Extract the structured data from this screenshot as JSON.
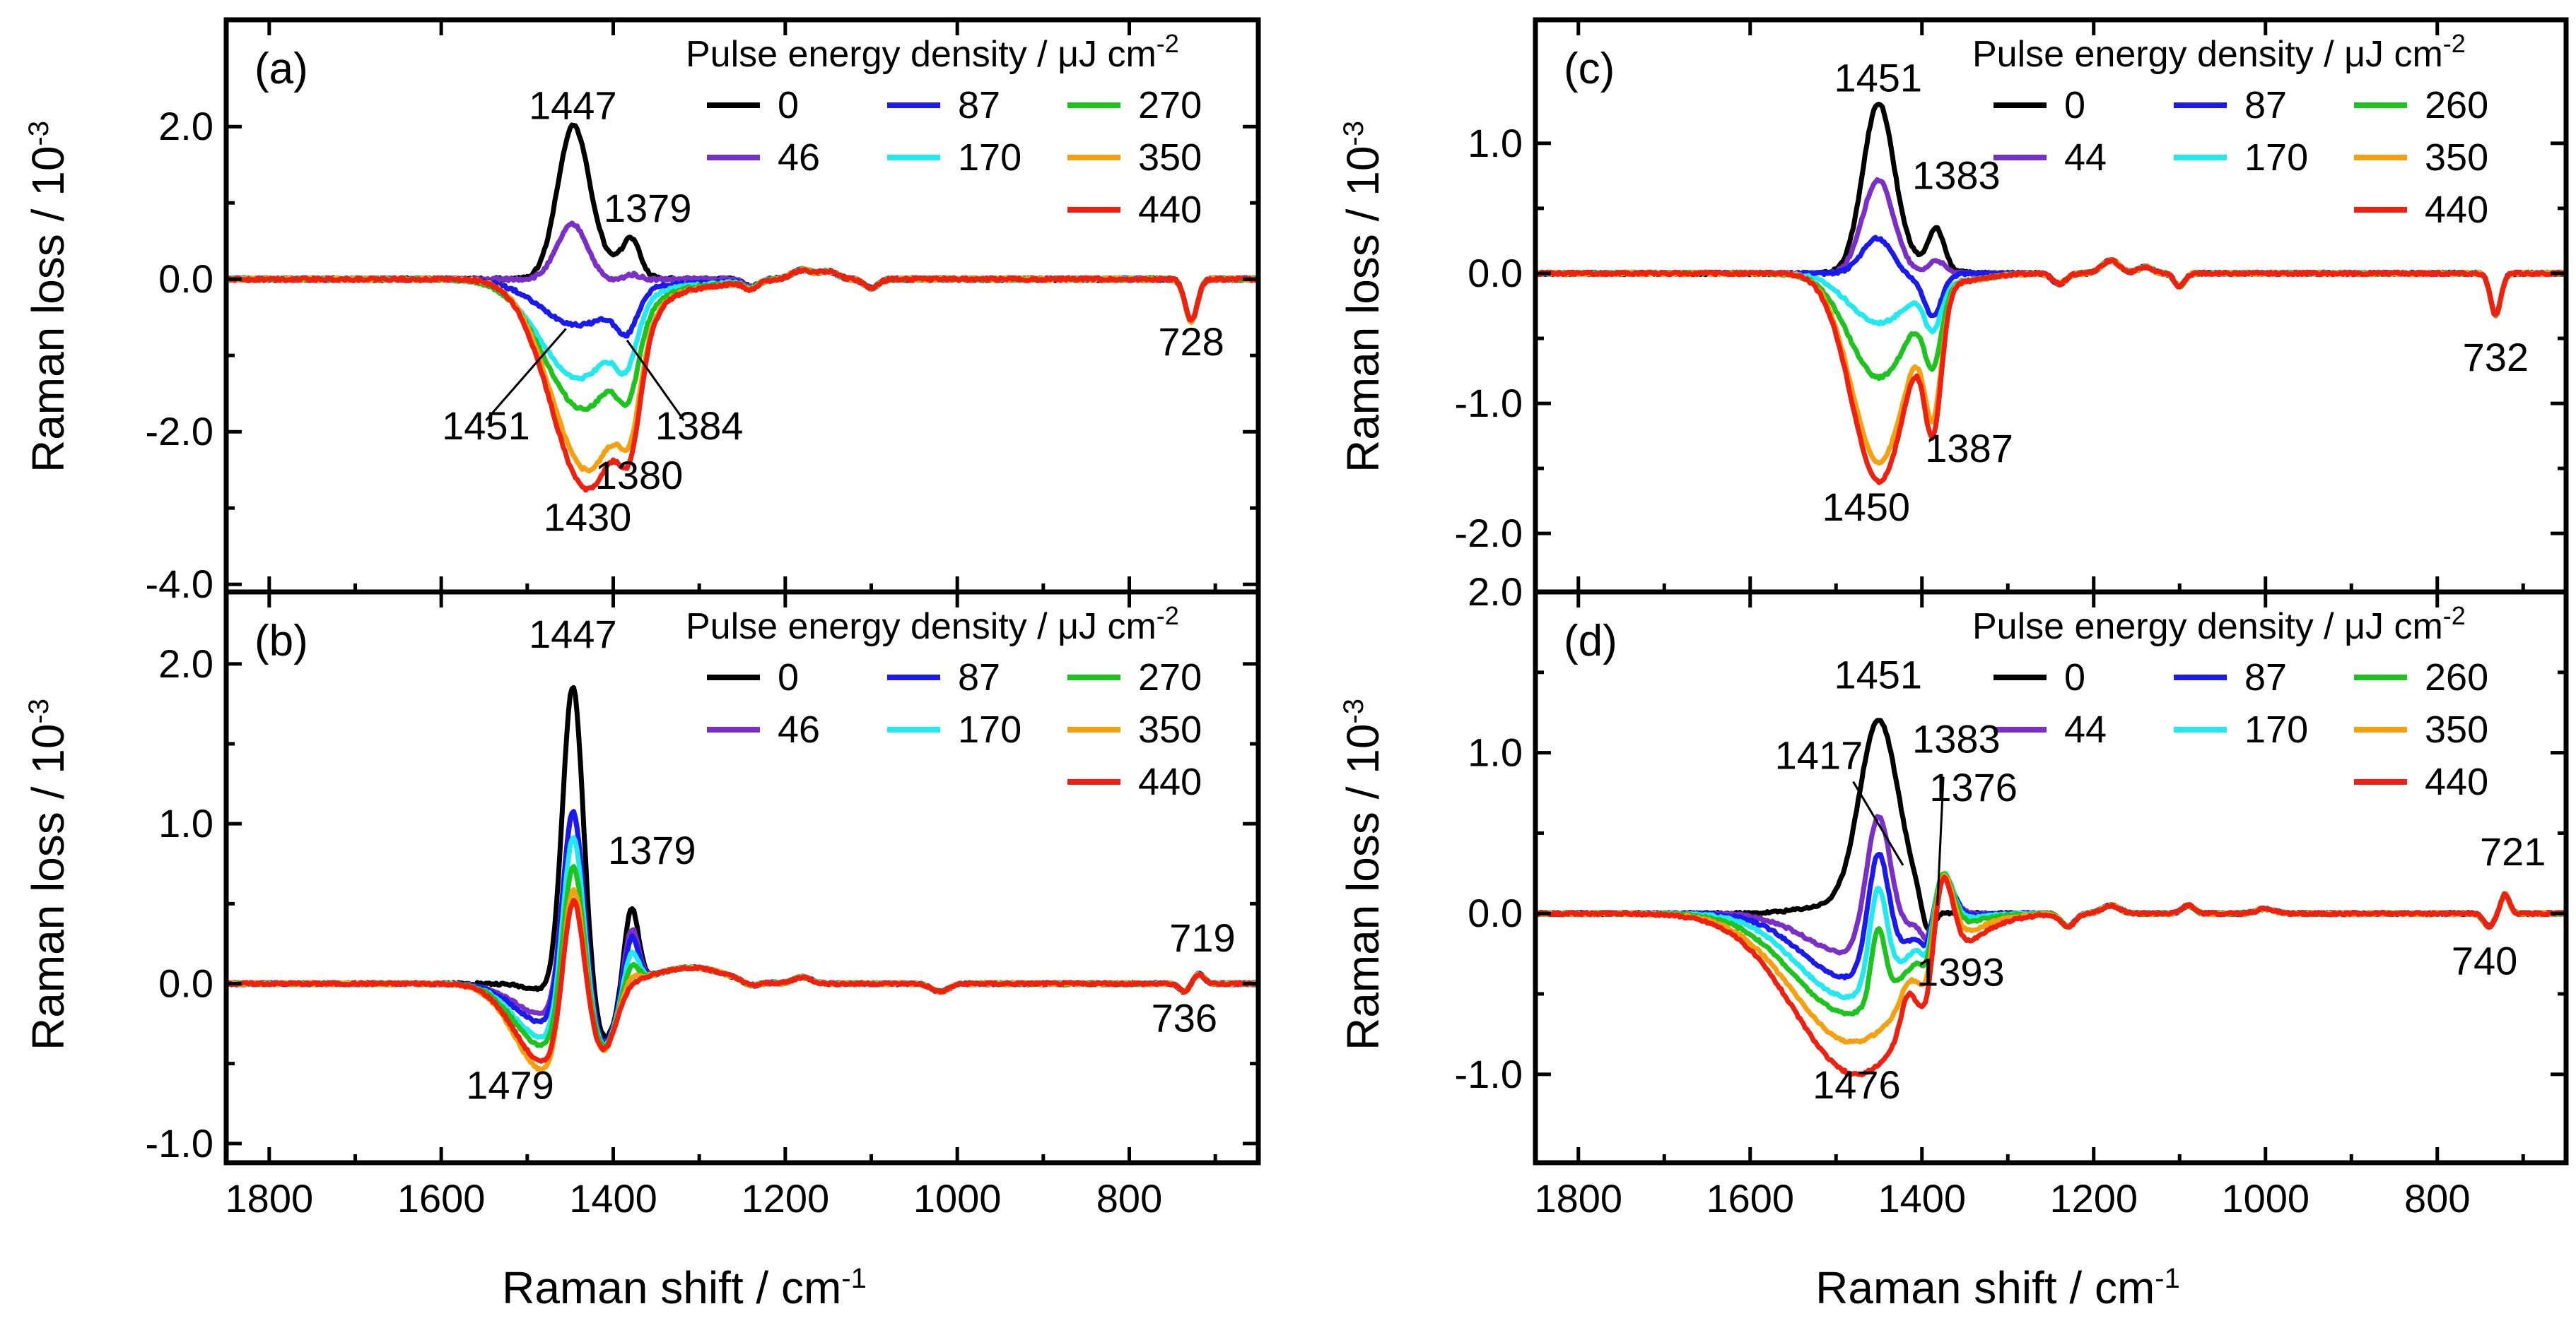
{
  "figure": {
    "x_axis_label": "Raman shift / cm",
    "x_axis_label_sup": "-1",
    "y_axis_label": "Raman loss / 10",
    "y_axis_label_sup": "-3"
  },
  "colors": {
    "black": "#000000",
    "purple": "#7a2fc8",
    "blue": "#1a1aee",
    "cyan": "#22e8f0",
    "green": "#1ec41e",
    "orange": "#f5a10f",
    "red": "#f02010"
  },
  "chart_data": [
    {
      "type": "line",
      "panel": "(a)",
      "xlim": [
        1850,
        650
      ],
      "ylim": [
        -4.1,
        3.4
      ],
      "xticks": [
        1800,
        1600,
        1400,
        1200,
        1000,
        800
      ],
      "xtick_labels": [
        "1800",
        "1600",
        "1400",
        "1200",
        "1000",
        "800"
      ],
      "yticks": [
        2.0,
        1.0,
        0.0,
        -1.0,
        -2.0,
        -3.0,
        -4.0
      ],
      "ytick_labels": [
        "2.0",
        "",
        "0.0",
        "",
        "-2.0",
        "",
        "-4.0"
      ],
      "legend_title": "Pulse energy density / μJ cm",
      "legend_title_sup": "-2",
      "series": [
        {
          "name": "0",
          "color": "black",
          "peaks": [
            [
              1447,
              1.85,
              18
            ],
            [
              1379,
              0.45,
              10
            ]
          ],
          "shoulder": [
            1420,
            0.25,
            30
          ],
          "noise": 0.04
        },
        {
          "name": "46",
          "color": "purple",
          "peaks": [
            [
              1447,
              0.75,
              18
            ],
            [
              1379,
              0.08,
              10
            ]
          ],
          "shoulder": [
            1420,
            -0.05,
            30
          ],
          "noise": 0.04
        },
        {
          "name": "87",
          "color": "blue",
          "peaks": [
            [
              1440,
              -0.6,
              45
            ],
            [
              1384,
              -0.45,
              12
            ]
          ],
          "shoulder": [
            1300,
            -0.05,
            40
          ],
          "noise": 0.04
        },
        {
          "name": "170",
          "color": "cyan",
          "peaks": [
            [
              1440,
              -1.3,
              45
            ],
            [
              1384,
              -0.6,
              12
            ]
          ],
          "shoulder": [
            1300,
            -0.07,
            40
          ],
          "noise": 0.04
        },
        {
          "name": "270",
          "color": "green",
          "peaks": [
            [
              1435,
              -1.7,
              45
            ],
            [
              1382,
              -0.75,
              12
            ]
          ],
          "shoulder": [
            1300,
            -0.08,
            40
          ],
          "noise": 0.04
        },
        {
          "name": "350",
          "color": "orange",
          "peaks": [
            [
              1430,
              -2.5,
              42
            ],
            [
              1380,
              -0.9,
              12
            ]
          ],
          "shoulder": [
            1300,
            -0.1,
            40
          ],
          "noise": 0.04
        },
        {
          "name": "440",
          "color": "red",
          "peaks": [
            [
              1430,
              -2.75,
              42
            ],
            [
              1380,
              -1.0,
              12
            ]
          ],
          "shoulder": [
            1300,
            -0.1,
            40
          ],
          "noise": 0.04
        }
      ],
      "global_features": [
        [
          1180,
          0.12,
          12
        ],
        [
          1100,
          -0.12,
          8
        ],
        [
          1150,
          0.1,
          10
        ],
        [
          728,
          -0.55,
          7
        ],
        [
          1240,
          -0.1,
          8
        ]
      ],
      "annotations": [
        {
          "text": "1447",
          "x": 1447,
          "y": 2.1
        },
        {
          "text": "1379",
          "x": 1360,
          "y": 0.75
        },
        {
          "text": "728",
          "x": 728,
          "y": -1.0
        },
        {
          "text": "1451",
          "x": 1548,
          "y": -2.1
        },
        {
          "text": "1384",
          "x": 1300,
          "y": -2.1
        },
        {
          "text": "1380",
          "x": 1370,
          "y": -2.75
        },
        {
          "text": "1430",
          "x": 1430,
          "y": -3.3
        }
      ]
    },
    {
      "type": "line",
      "panel": "(b)",
      "xlim": [
        1850,
        650
      ],
      "ylim": [
        -1.12,
        2.45
      ],
      "xticks": [
        1800,
        1600,
        1400,
        1200,
        1000,
        800
      ],
      "xtick_labels": [
        "1800",
        "1600",
        "1400",
        "1200",
        "1000",
        "800"
      ],
      "yticks": [
        2.0,
        1.5,
        1.0,
        0.5,
        0.0,
        -0.5,
        -1.0
      ],
      "ytick_labels": [
        "2.0",
        "",
        "1.0",
        "",
        "0.0",
        "",
        "-1.0"
      ],
      "legend_title": "Pulse energy density / μJ cm",
      "legend_title_sup": "-2",
      "series": [
        {
          "name": "0",
          "color": "black",
          "peaks": [
            [
              1447,
              1.9,
              12
            ],
            [
              1379,
              0.48,
              8
            ]
          ],
          "shoulder": [
            1470,
            -0.05,
            25
          ],
          "noise": 0.015
        },
        {
          "name": "46",
          "color": "purple",
          "peaks": [
            [
              1447,
              1.2,
              12
            ],
            [
              1379,
              0.35,
              8
            ]
          ],
          "shoulder": [
            1479,
            -0.2,
            35
          ],
          "noise": 0.015
        },
        {
          "name": "87",
          "color": "blue",
          "peaks": [
            [
              1447,
              1.25,
              12
            ],
            [
              1379,
              0.3,
              8
            ]
          ],
          "shoulder": [
            1479,
            -0.25,
            35
          ],
          "noise": 0.015
        },
        {
          "name": "170",
          "color": "cyan",
          "peaks": [
            [
              1447,
              1.15,
              12
            ],
            [
              1379,
              0.2,
              8
            ]
          ],
          "shoulder": [
            1479,
            -0.35,
            35
          ],
          "noise": 0.015
        },
        {
          "name": "270",
          "color": "green",
          "peaks": [
            [
              1447,
              1.0,
              12
            ],
            [
              1379,
              0.12,
              8
            ]
          ],
          "shoulder": [
            1479,
            -0.4,
            35
          ],
          "noise": 0.015
        },
        {
          "name": "350",
          "color": "orange",
          "peaks": [
            [
              1447,
              0.95,
              12
            ],
            [
              1379,
              0.05,
              8
            ]
          ],
          "shoulder": [
            1479,
            -0.55,
            35
          ],
          "noise": 0.015
        },
        {
          "name": "440",
          "color": "red",
          "peaks": [
            [
              1447,
              0.85,
              12
            ],
            [
              1379,
              0.0,
              8
            ]
          ],
          "shoulder": [
            1479,
            -0.5,
            35
          ],
          "noise": 0.015
        }
      ],
      "global_features": [
        [
          1310,
          0.1,
          40
        ],
        [
          1410,
          -0.35,
          14
        ],
        [
          1240,
          -0.03,
          10
        ],
        [
          1180,
          0.04,
          10
        ],
        [
          1020,
          -0.05,
          10
        ],
        [
          719,
          0.06,
          6
        ],
        [
          736,
          -0.05,
          6
        ]
      ],
      "annotations": [
        {
          "text": "1447",
          "x": 1447,
          "y": 2.1
        },
        {
          "text": "1379",
          "x": 1355,
          "y": 0.75
        },
        {
          "text": "719",
          "x": 715,
          "y": 0.2
        },
        {
          "text": "736",
          "x": 736,
          "y": -0.3
        },
        {
          "text": "1479",
          "x": 1520,
          "y": -0.72
        }
      ]
    },
    {
      "type": "line",
      "panel": "(c)",
      "xlim": [
        1850,
        650
      ],
      "ylim": [
        -2.45,
        1.95
      ],
      "xticks": [
        1800,
        1600,
        1400,
        1200,
        1000,
        800
      ],
      "xtick_labels": [
        "1800",
        "1600",
        "1400",
        "1200",
        "1000",
        "800"
      ],
      "yticks": [
        1.0,
        0.5,
        0.0,
        -0.5,
        -1.0,
        -1.5,
        -2.0
      ],
      "ytick_labels": [
        "1.0",
        "",
        "0.0",
        "",
        "-1.0",
        "",
        "-2.0"
      ],
      "legend_title": "Pulse energy density / μJ cm",
      "legend_title_sup": "-2",
      "series": [
        {
          "name": "0",
          "color": "black",
          "peaks": [
            [
              1451,
              1.25,
              18
            ],
            [
              1383,
              0.3,
              9
            ]
          ],
          "shoulder": [
            1420,
            0.1,
            30
          ],
          "noise": 0.02
        },
        {
          "name": "44",
          "color": "purple",
          "peaks": [
            [
              1451,
              0.72,
              18
            ],
            [
              1383,
              0.1,
              9
            ]
          ],
          "shoulder": [
            1420,
            0.0,
            30
          ],
          "noise": 0.02
        },
        {
          "name": "87",
          "color": "blue",
          "peaks": [
            [
              1451,
              0.3,
              18
            ],
            [
              1387,
              -0.3,
              10
            ]
          ],
          "shoulder": [
            1420,
            -0.05,
            30
          ],
          "noise": 0.02
        },
        {
          "name": "170",
          "color": "cyan",
          "peaks": [
            [
              1450,
              -0.38,
              35
            ],
            [
              1387,
              -0.35,
              10
            ]
          ],
          "shoulder": [
            1350,
            -0.05,
            30
          ],
          "noise": 0.02
        },
        {
          "name": "260",
          "color": "green",
          "peaks": [
            [
              1450,
              -0.8,
              35
            ],
            [
              1387,
              -0.55,
              10
            ]
          ],
          "shoulder": [
            1350,
            -0.05,
            30
          ],
          "noise": 0.02
        },
        {
          "name": "350",
          "color": "orange",
          "peaks": [
            [
              1450,
              -1.45,
              32
            ],
            [
              1387,
              -0.9,
              10
            ]
          ],
          "shoulder": [
            1350,
            -0.05,
            30
          ],
          "noise": 0.02
        },
        {
          "name": "440",
          "color": "red",
          "peaks": [
            [
              1450,
              -1.6,
              32
            ],
            [
              1387,
              -1.0,
              10
            ]
          ],
          "shoulder": [
            1350,
            -0.05,
            30
          ],
          "noise": 0.02
        }
      ],
      "global_features": [
        [
          1180,
          0.1,
          10
        ],
        [
          1140,
          0.05,
          8
        ],
        [
          1100,
          -0.1,
          6
        ],
        [
          1240,
          -0.08,
          8
        ],
        [
          732,
          -0.32,
          6
        ]
      ],
      "annotations": [
        {
          "text": "1451",
          "x": 1451,
          "y": 1.4
        },
        {
          "text": "1383",
          "x": 1360,
          "y": 0.65
        },
        {
          "text": "732",
          "x": 732,
          "y": -0.75
        },
        {
          "text": "1387",
          "x": 1345,
          "y": -1.45
        },
        {
          "text": "1450",
          "x": 1465,
          "y": -1.9
        }
      ]
    },
    {
      "type": "line",
      "panel": "(d)",
      "xlim": [
        1850,
        650
      ],
      "ylim": [
        -1.55,
        2.0
      ],
      "xticks": [
        1800,
        1600,
        1400,
        1200,
        1000,
        800
      ],
      "xtick_labels": [
        "1800",
        "1600",
        "1400",
        "1200",
        "1000",
        "800"
      ],
      "yticks": [
        2.0,
        1.5,
        1.0,
        0.5,
        0.0,
        -0.5,
        -1.0
      ],
      "ytick_labels": [
        "2.0",
        "",
        "1.0",
        "",
        "0.0",
        "",
        "-1.0"
      ],
      "legend_title": "Pulse energy density / μJ cm",
      "legend_title_sup": "-2",
      "series": [
        {
          "name": "0",
          "color": "black",
          "peaks": [
            [
              1451,
              1.15,
              22
            ],
            [
              1500,
              0.05,
              40
            ]
          ],
          "shoulder": [
            1420,
            0.1,
            20
          ],
          "noise": 0.015
        },
        {
          "name": "44",
          "color": "purple",
          "peaks": [
            [
              1451,
              0.8,
              14
            ],
            [
              1485,
              -0.25,
              50
            ]
          ],
          "shoulder": [
            1376,
            0.25,
            12
          ],
          "noise": 0.015
        },
        {
          "name": "87",
          "color": "blue",
          "peaks": [
            [
              1451,
              0.7,
              12
            ],
            [
              1485,
              -0.4,
              55
            ]
          ],
          "shoulder": [
            1376,
            0.3,
            12
          ],
          "noise": 0.015
        },
        {
          "name": "170",
          "color": "cyan",
          "peaks": [
            [
              1451,
              0.6,
              10
            ],
            [
              1485,
              -0.52,
              60
            ]
          ],
          "shoulder": [
            1376,
            0.35,
            12
          ],
          "noise": 0.015
        },
        {
          "name": "260",
          "color": "green",
          "peaks": [
            [
              1451,
              0.45,
              8
            ],
            [
              1485,
              -0.62,
              65
            ]
          ],
          "shoulder": [
            1376,
            0.4,
            12
          ],
          "noise": 0.015
        },
        {
          "name": "350",
          "color": "orange",
          "peaks": [
            [
              1417,
              0.1,
              8
            ],
            [
              1480,
              -0.8,
              70
            ]
          ],
          "shoulder": [
            1376,
            0.5,
            12
          ],
          "noise": 0.015
        },
        {
          "name": "440",
          "color": "red",
          "peaks": [
            [
              1417,
              0.2,
              8
            ],
            [
              1476,
              -1.0,
              72
            ]
          ],
          "shoulder": [
            1376,
            0.6,
            12
          ],
          "noise": 0.015
        }
      ],
      "global_features": [
        [
          1393,
          -0.18,
          7
        ],
        [
          1230,
          -0.08,
          8
        ],
        [
          1180,
          0.05,
          10
        ],
        [
          1090,
          0.05,
          7
        ],
        [
          1000,
          0.03,
          10
        ],
        [
          721,
          0.12,
          5
        ],
        [
          740,
          -0.08,
          6
        ]
      ],
      "annotations": [
        {
          "text": "1451",
          "x": 1451,
          "y": 1.4
        },
        {
          "text": "1383",
          "x": 1360,
          "y": 1.0
        },
        {
          "text": "1417",
          "x": 1520,
          "y": 0.9
        },
        {
          "text": "1376",
          "x": 1340,
          "y": 0.7
        },
        {
          "text": "1393",
          "x": 1355,
          "y": -0.45
        },
        {
          "text": "721",
          "x": 712,
          "y": 0.3
        },
        {
          "text": "740",
          "x": 745,
          "y": -0.38
        },
        {
          "text": "1476",
          "x": 1476,
          "y": -1.15
        }
      ]
    }
  ]
}
